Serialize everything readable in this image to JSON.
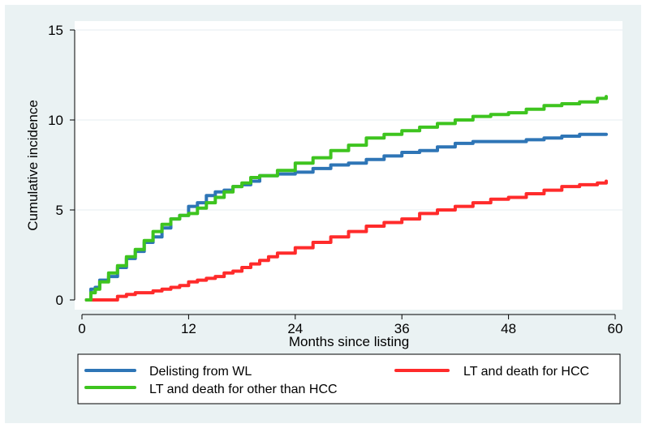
{
  "chart_data": {
    "type": "line",
    "title": "",
    "xlabel": "Months since listing",
    "ylabel": "Cumulative incidence",
    "xlim": [
      0,
      60
    ],
    "ylim": [
      0,
      15
    ],
    "x_ticks": [
      0,
      12,
      24,
      36,
      48,
      60
    ],
    "y_ticks": [
      0,
      5,
      10,
      15
    ],
    "grid": true,
    "legend_position": "bottom",
    "series": [
      {
        "name": "Delisting from WL",
        "color": "#2e75b6",
        "x": [
          0.5,
          1.0,
          1.5,
          2.0,
          3.0,
          4.0,
          5.0,
          6.0,
          7.0,
          8.0,
          9.0,
          10.0,
          11.0,
          12.0,
          13.0,
          14.0,
          15.0,
          16.0,
          17.0,
          18.0,
          19.0,
          20.0,
          22.0,
          24.0,
          26.0,
          28.0,
          30.0,
          32.0,
          34.0,
          36.0,
          38.0,
          40.0,
          42.0,
          44.0,
          46.0,
          48.0,
          50.0,
          52.0,
          54.0,
          56.0,
          58.0,
          59.0
        ],
        "y": [
          0.0,
          0.6,
          0.7,
          1.1,
          1.3,
          1.8,
          2.3,
          2.7,
          3.2,
          3.5,
          4.0,
          4.5,
          4.7,
          5.2,
          5.4,
          5.8,
          6.0,
          6.1,
          6.3,
          6.4,
          6.6,
          6.9,
          7.0,
          7.1,
          7.3,
          7.5,
          7.6,
          7.8,
          8.0,
          8.2,
          8.3,
          8.5,
          8.7,
          8.8,
          8.8,
          8.8,
          8.9,
          9.0,
          9.1,
          9.2,
          9.2,
          9.2
        ]
      },
      {
        "name": "LT and death for HCC",
        "color": "#ff2b2b",
        "x": [
          0.5,
          3.0,
          4.0,
          5.0,
          6.0,
          7.0,
          8.0,
          9.0,
          10.0,
          11.0,
          12.0,
          13.0,
          14.0,
          15.0,
          16.0,
          17.0,
          18.0,
          19.0,
          20.0,
          21.0,
          22.0,
          24.0,
          26.0,
          28.0,
          30.0,
          32.0,
          34.0,
          36.0,
          38.0,
          40.0,
          42.0,
          44.0,
          46.0,
          48.0,
          50.0,
          52.0,
          54.0,
          56.0,
          58.0,
          59.0
        ],
        "y": [
          0.0,
          0.0,
          0.2,
          0.3,
          0.4,
          0.4,
          0.5,
          0.6,
          0.7,
          0.8,
          1.0,
          1.1,
          1.2,
          1.3,
          1.5,
          1.6,
          1.8,
          2.0,
          2.2,
          2.4,
          2.6,
          2.9,
          3.2,
          3.5,
          3.8,
          4.1,
          4.3,
          4.5,
          4.8,
          5.0,
          5.2,
          5.4,
          5.6,
          5.7,
          5.9,
          6.1,
          6.3,
          6.4,
          6.5,
          6.6
        ]
      },
      {
        "name": "LT and death for other than HCC",
        "color": "#3ec41f",
        "x": [
          0.5,
          1.0,
          1.5,
          2.0,
          3.0,
          4.0,
          5.0,
          6.0,
          7.0,
          8.0,
          9.0,
          10.0,
          11.0,
          12.0,
          13.0,
          14.0,
          15.0,
          16.0,
          17.0,
          18.0,
          19.0,
          20.0,
          22.0,
          24.0,
          26.0,
          28.0,
          30.0,
          32.0,
          34.0,
          36.0,
          38.0,
          40.0,
          42.0,
          44.0,
          46.0,
          48.0,
          50.0,
          52.0,
          54.0,
          56.0,
          58.0,
          59.0
        ],
        "y": [
          0.0,
          0.4,
          0.6,
          1.0,
          1.5,
          1.9,
          2.4,
          2.8,
          3.3,
          3.8,
          4.2,
          4.5,
          4.7,
          4.8,
          5.1,
          5.4,
          5.7,
          6.0,
          6.3,
          6.5,
          6.8,
          6.9,
          7.2,
          7.6,
          7.9,
          8.3,
          8.6,
          9.0,
          9.2,
          9.4,
          9.6,
          9.8,
          10.0,
          10.2,
          10.3,
          10.4,
          10.6,
          10.8,
          10.9,
          11.0,
          11.2,
          11.3
        ]
      }
    ]
  }
}
